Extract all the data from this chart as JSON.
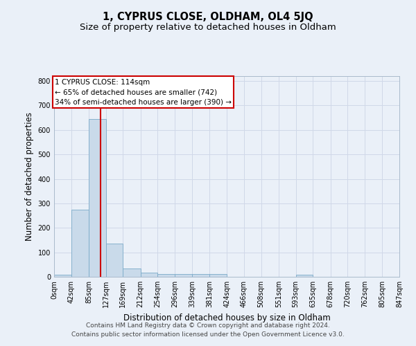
{
  "title": "1, CYPRUS CLOSE, OLDHAM, OL4 5JQ",
  "subtitle": "Size of property relative to detached houses in Oldham",
  "xlabel": "Distribution of detached houses by size in Oldham",
  "ylabel": "Number of detached properties",
  "bin_edges": [
    0,
    42,
    85,
    127,
    169,
    212,
    254,
    296,
    339,
    381,
    424,
    466,
    508,
    551,
    593,
    635,
    678,
    720,
    762,
    805,
    847
  ],
  "bar_heights": [
    8,
    275,
    645,
    135,
    35,
    18,
    12,
    10,
    10,
    10,
    0,
    0,
    0,
    0,
    8,
    0,
    0,
    0,
    0,
    0
  ],
  "bar_color": "#c9daea",
  "bar_edge_color": "#7aaac8",
  "grid_color": "#d0d8e8",
  "background_color": "#eaf0f8",
  "red_line_x": 114,
  "annotation_lines": [
    "1 CYPRUS CLOSE: 114sqm",
    "← 65% of detached houses are smaller (742)",
    "34% of semi-detached houses are larger (390) →"
  ],
  "annotation_box_color": "#ffffff",
  "annotation_box_edge": "#cc0000",
  "red_line_color": "#cc0000",
  "ylim": [
    0,
    820
  ],
  "yticks": [
    0,
    100,
    200,
    300,
    400,
    500,
    600,
    700,
    800
  ],
  "footer_line1": "Contains HM Land Registry data © Crown copyright and database right 2024.",
  "footer_line2": "Contains public sector information licensed under the Open Government Licence v3.0.",
  "title_fontsize": 10.5,
  "subtitle_fontsize": 9.5,
  "tick_label_fontsize": 7,
  "ylabel_fontsize": 8.5,
  "xlabel_fontsize": 8.5,
  "annotation_fontsize": 7.5,
  "footer_fontsize": 6.5
}
